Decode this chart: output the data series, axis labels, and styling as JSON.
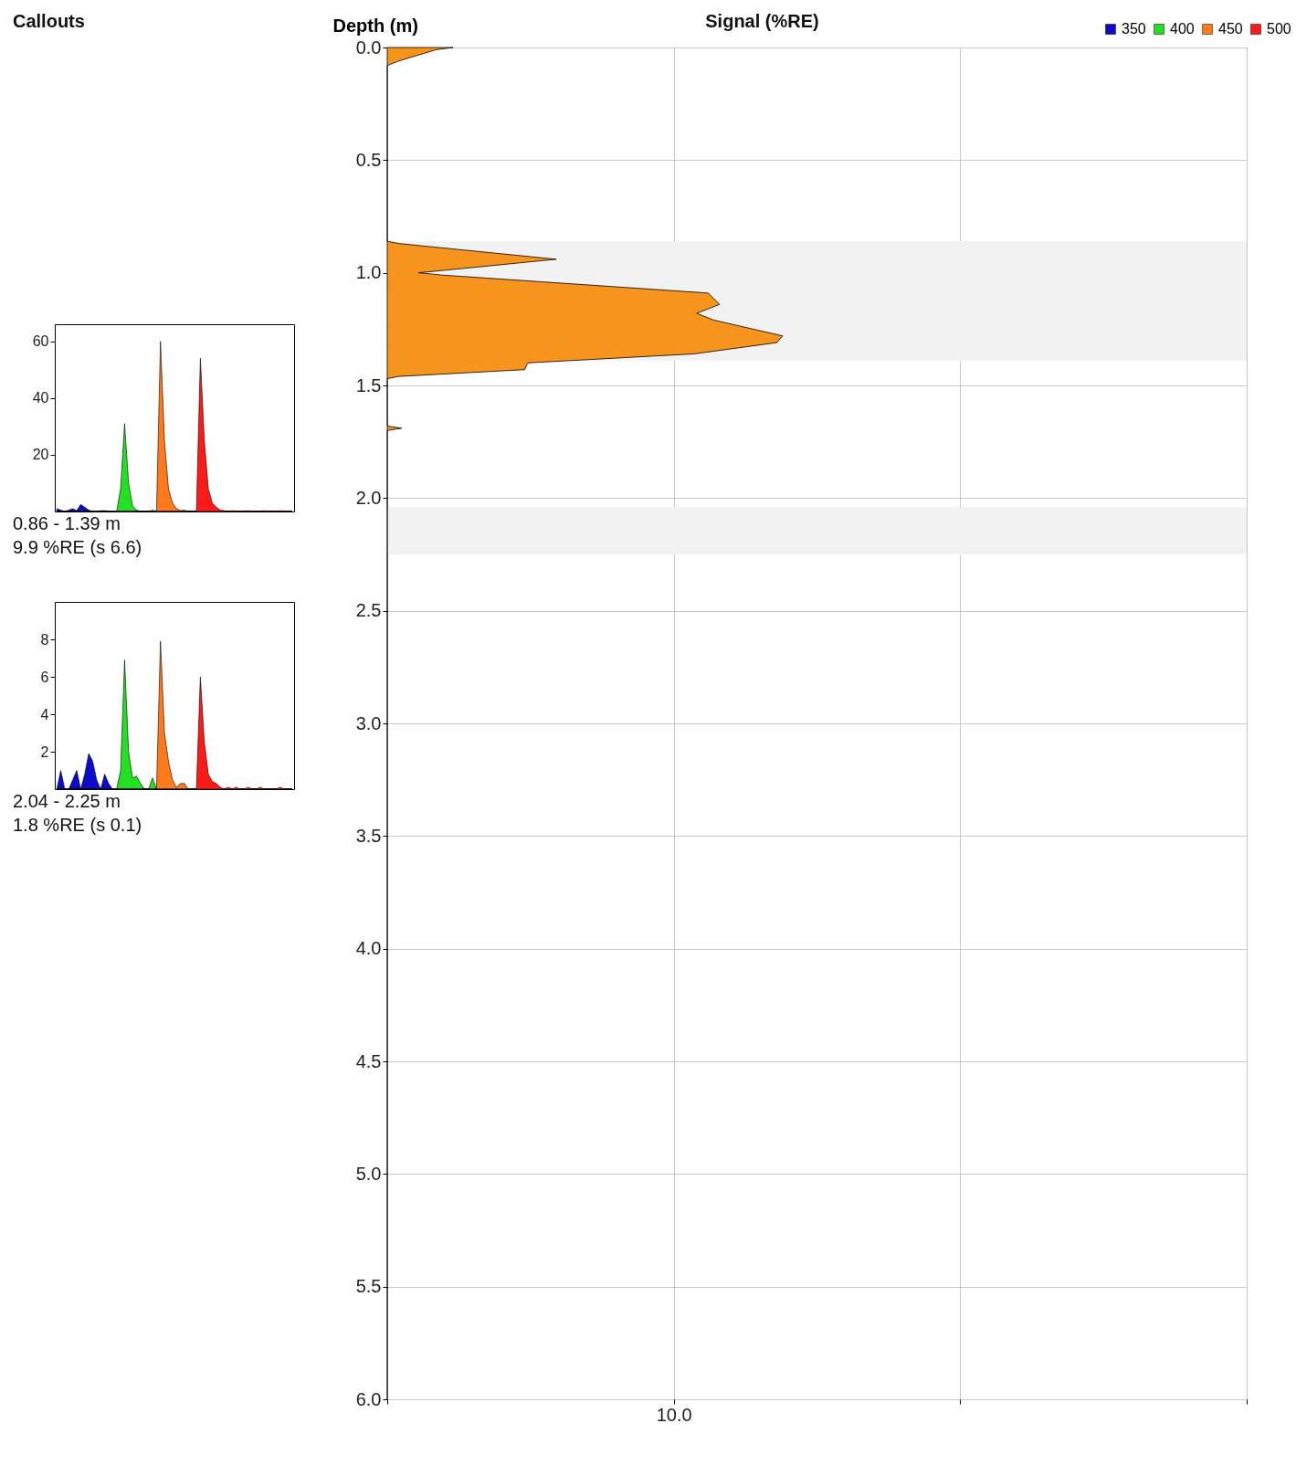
{
  "chart_data": [
    {
      "type": "area",
      "title": "Callouts",
      "categories": [
        null,
        null,
        null,
        null,
        null,
        null,
        null,
        null,
        null,
        null,
        null,
        null,
        null,
        null,
        null,
        null,
        null,
        null,
        null,
        null,
        null,
        null,
        null,
        null,
        null,
        null,
        null,
        null,
        null,
        null,
        null,
        null,
        null,
        null,
        null,
        null,
        null,
        null,
        null,
        null,
        null,
        null,
        null,
        null,
        null,
        null,
        null,
        null,
        null,
        null,
        null,
        null,
        null,
        null,
        null,
        null,
        null,
        null,
        null,
        null
      ],
      "series": [
        {
          "name": "350",
          "color": "#0a0acd",
          "values": [
            1,
            0.5,
            0,
            0.5,
            1,
            0.3,
            2.5,
            1.5,
            0.5,
            0,
            0,
            0.3,
            0.3,
            0,
            0,
            0,
            0,
            0,
            0,
            0,
            0,
            0,
            0,
            0,
            0,
            0,
            0,
            0,
            0,
            0,
            0,
            0,
            0,
            0,
            0,
            0,
            0,
            0,
            0,
            0,
            0,
            0,
            0,
            0,
            0,
            0,
            0,
            0,
            0,
            0,
            0,
            0,
            0,
            0,
            0,
            0,
            0,
            0,
            0,
            0
          ]
        },
        {
          "name": "400",
          "color": "#22e022",
          "values": [
            0,
            0,
            0,
            0,
            0,
            0,
            0,
            0,
            0,
            0,
            0,
            0,
            0,
            0,
            0,
            0,
            8,
            31,
            10,
            2,
            0.5,
            0,
            0,
            0,
            0,
            0,
            0,
            0,
            0,
            0,
            0,
            0,
            0,
            0,
            0,
            0,
            0,
            0,
            0,
            0,
            0,
            0,
            0,
            0,
            0,
            0,
            0,
            0,
            0,
            0,
            0,
            0,
            0,
            0,
            0,
            0,
            0,
            0,
            0,
            0
          ]
        },
        {
          "name": "450",
          "color": "#ff7a1a",
          "values": [
            0,
            0,
            0,
            0,
            0,
            0,
            0,
            0,
            0,
            0,
            0,
            0,
            0,
            0,
            0,
            0,
            0,
            0,
            0,
            0,
            0,
            0,
            0,
            0,
            0.5,
            0,
            60,
            25,
            8,
            3,
            1,
            0.3,
            0.5,
            0,
            0,
            0,
            0,
            0,
            0,
            0,
            0,
            0,
            0,
            0,
            0,
            0,
            0,
            0,
            0,
            0,
            0,
            0,
            0,
            0,
            0,
            0,
            0,
            0,
            0,
            0
          ]
        },
        {
          "name": "500",
          "color": "#ff1a1a",
          "values": [
            0,
            0,
            0,
            0,
            0,
            0,
            0,
            0,
            0,
            0,
            0,
            0,
            0,
            0,
            0,
            0,
            0,
            0,
            0,
            0,
            0,
            0,
            0,
            0,
            0,
            0,
            0,
            0,
            0,
            0,
            0,
            0,
            0,
            0,
            0,
            0,
            54,
            25,
            8,
            3,
            1.5,
            0.5,
            0.3,
            0,
            0.3,
            0,
            0.2,
            0,
            0.3,
            0,
            0.2,
            0,
            0.3,
            0,
            0.2,
            0,
            0.3,
            0,
            0.2,
            0
          ]
        }
      ],
      "ylim": [
        0,
        66
      ],
      "yticks": [
        20,
        40,
        60
      ],
      "tick_labels": "y",
      "legend": "top right",
      "annotations": [
        "0.86 - 1.39 m",
        "9.9 %RE (s 6.6)"
      ]
    },
    {
      "type": "area",
      "categories": [
        null,
        null,
        null,
        null,
        null,
        null,
        null,
        null,
        null,
        null,
        null,
        null,
        null,
        null,
        null,
        null,
        null,
        null,
        null,
        null,
        null,
        null,
        null,
        null,
        null,
        null,
        null,
        null,
        null,
        null,
        null,
        null,
        null,
        null,
        null,
        null,
        null,
        null,
        null,
        null,
        null,
        null,
        null,
        null,
        null,
        null,
        null,
        null,
        null,
        null,
        null,
        null,
        null,
        null,
        null,
        null,
        null,
        null,
        null,
        null
      ],
      "series": [
        {
          "color": "#0a0acd",
          "values": [
            0,
            1,
            0,
            0,
            0.5,
            1,
            0,
            0.8,
            1.9,
            1.5,
            0.5,
            0,
            0.8,
            0.3,
            0,
            0,
            0,
            0,
            0,
            0,
            0,
            0,
            0,
            0,
            0,
            0,
            0,
            0,
            0,
            0,
            0,
            0,
            0,
            0,
            0,
            0,
            0,
            0,
            0,
            0,
            0,
            0,
            0,
            0,
            0,
            0,
            0,
            0,
            0,
            0,
            0,
            0,
            0,
            0,
            0,
            0,
            0,
            0,
            0,
            0
          ]
        },
        {
          "color": "#22e022",
          "values": [
            0,
            0,
            0,
            0,
            0,
            0,
            0,
            0,
            0,
            0,
            0,
            0,
            0,
            0,
            0,
            0,
            1,
            6.9,
            2,
            0.6,
            0.7,
            0.3,
            0,
            0,
            0.6,
            0,
            0,
            0,
            0,
            0,
            0,
            0,
            0,
            0,
            0,
            0,
            0,
            0,
            0,
            0,
            0,
            0,
            0,
            0,
            0,
            0,
            0,
            0,
            0,
            0,
            0,
            0,
            0,
            0,
            0,
            0,
            0,
            0,
            0,
            0
          ]
        },
        {
          "color": "#ff7a1a",
          "values": [
            0,
            0,
            0,
            0,
            0,
            0,
            0,
            0,
            0,
            0,
            0,
            0,
            0,
            0,
            0,
            0,
            0,
            0,
            0,
            0,
            0,
            0,
            0,
            0,
            0,
            0,
            7.9,
            3,
            1.5,
            0.5,
            0.1,
            0.3,
            0.3,
            0,
            0,
            0,
            0,
            0,
            0,
            0,
            0,
            0,
            0,
            0,
            0,
            0,
            0,
            0,
            0,
            0,
            0,
            0,
            0,
            0,
            0,
            0,
            0,
            0,
            0,
            0
          ]
        },
        {
          "color": "#ff1a1a",
          "values": [
            0,
            0,
            0,
            0,
            0,
            0,
            0,
            0,
            0,
            0,
            0,
            0,
            0,
            0,
            0,
            0,
            0,
            0,
            0,
            0,
            0,
            0,
            0,
            0,
            0,
            0,
            0,
            0,
            0,
            0,
            0,
            0,
            0,
            0,
            0,
            0,
            6,
            2.5,
            0.8,
            0.4,
            0.3,
            0.1,
            0,
            0.1,
            0,
            0.1,
            0,
            0,
            0.1,
            0,
            0,
            0.1,
            0,
            0,
            0,
            0,
            0.1,
            0,
            0,
            0
          ]
        }
      ],
      "ylim": [
        0,
        10
      ],
      "yticks": [
        2,
        4,
        6,
        8
      ],
      "tick_labels": "y",
      "annotations": [
        "2.04 - 2.25 m",
        "1.8 %RE (s 0.1)"
      ]
    },
    {
      "type": "area",
      "orientation": "horizontal",
      "xlabel": "Signal (%RE)",
      "ylabel": "Depth (m)",
      "x": [
        0,
        0.01,
        0.06,
        0.08,
        0.86,
        0.87,
        0.94,
        1.0,
        1.01,
        1.09,
        1.14,
        1.18,
        1.21,
        1.28,
        1.31,
        1.36,
        1.4,
        1.43,
        1.46,
        1.47,
        1.68,
        1.69,
        1.7,
        6.0
      ],
      "values": [
        2.3,
        1.7,
        0.4,
        0,
        0,
        0.4,
        5.9,
        1.1,
        1.9,
        11.2,
        11.6,
        10.8,
        11.4,
        13.8,
        13.6,
        10.7,
        4.9,
        4.8,
        0.4,
        0,
        0,
        0.5,
        0,
        0
      ],
      "color": "#f7941d",
      "xlim": [
        0,
        30
      ],
      "xticks": [
        {
          "value": 0,
          "label": null
        },
        {
          "value": 10,
          "label": "10.0"
        },
        {
          "value": 20,
          "label": null
        },
        {
          "value": 30,
          "label": null
        }
      ],
      "ylim": [
        6,
        0
      ],
      "yticks": [
        {
          "value": 0,
          "label": "0.0"
        },
        0.5,
        {
          "value": 1,
          "label": "1.0"
        },
        1.5,
        {
          "value": 2,
          "label": "2.0"
        },
        2.5,
        {
          "value": 3,
          "label": "3.0"
        },
        3.5,
        {
          "value": 4,
          "label": "4.0"
        },
        4.5,
        {
          "value": 5,
          "label": "5.0"
        },
        5.5,
        {
          "value": 6,
          "label": "6.0"
        }
      ],
      "grid": true,
      "bands": [
        {
          "axis": "y",
          "from": 0.86,
          "to": 1.39,
          "color": "#f2f2f2"
        },
        {
          "axis": "y",
          "from": 2.04,
          "to": 2.25,
          "color": "#f2f2f2"
        }
      ]
    }
  ]
}
